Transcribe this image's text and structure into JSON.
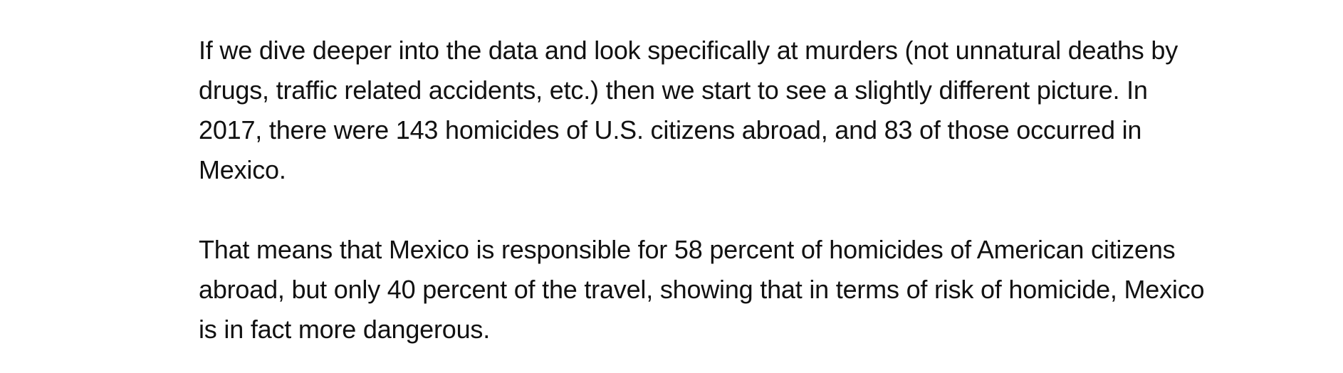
{
  "article": {
    "paragraphs": [
      {
        "lines": [
          "If we dive deeper into the data and look specifically at murders (not unnatural deaths by",
          "drugs, traffic related accidents, etc.) then we start to see a slightly different picture. In",
          "2017, there were 143 homicides of U.S. citizens abroad, and 83 of those occurred in",
          "Mexico."
        ]
      },
      {
        "lines": [
          "That means that Mexico is responsible for 58 percent of homicides of American citizens",
          "abroad, but only 40 percent of the travel, showing that in terms of risk of homicide, Mexico",
          "is in fact more dangerous."
        ]
      }
    ]
  }
}
